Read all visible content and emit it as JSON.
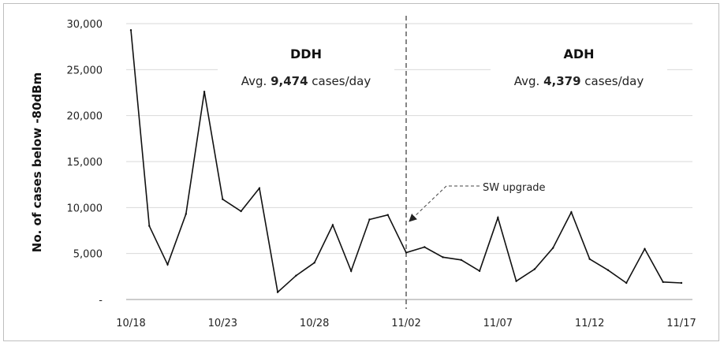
{
  "chart_data": {
    "type": "line",
    "title": "",
    "ylabel": "No. of cases below -80dBm",
    "xlabel": "",
    "ylim": [
      0,
      30000
    ],
    "yticks": [
      {
        "value": 0,
        "label": "-"
      },
      {
        "value": 5000,
        "label": "5,000"
      },
      {
        "value": 10000,
        "label": "10,000"
      },
      {
        "value": 15000,
        "label": "15,000"
      },
      {
        "value": 20000,
        "label": "20,000"
      },
      {
        "value": 25000,
        "label": "25,000"
      },
      {
        "value": 30000,
        "label": "30,000"
      }
    ],
    "xtick_labels": [
      {
        "date": "10/18",
        "label": "10/18"
      },
      {
        "date": "10/23",
        "label": "10/23"
      },
      {
        "date": "10/28",
        "label": "10/28"
      },
      {
        "date": "11/02",
        "label": "11/02"
      },
      {
        "date": "11/07",
        "label": "11/07"
      },
      {
        "date": "11/12",
        "label": "11/12"
      },
      {
        "date": "11/17",
        "label": "11/17"
      }
    ],
    "grid": true,
    "series": [
      {
        "dates": [
          "10/18",
          "10/19",
          "10/20",
          "10/21",
          "10/22",
          "10/23",
          "10/24",
          "10/25",
          "10/26",
          "10/27",
          "10/28",
          "10/29",
          "10/30",
          "10/31",
          "11/01",
          "11/02",
          "11/03",
          "11/04",
          "11/05",
          "11/06",
          "11/07",
          "11/08",
          "11/09",
          "11/10",
          "11/11",
          "11/12",
          "11/13",
          "11/14",
          "11/15",
          "11/16",
          "11/17"
        ],
        "values": [
          29300,
          8000,
          3800,
          9300,
          22600,
          10900,
          9600,
          12100,
          800,
          2600,
          4000,
          8100,
          3100,
          8700,
          9200,
          5100,
          5700,
          4600,
          4300,
          3100,
          8900,
          2000,
          3300,
          5600,
          9500,
          4400,
          3200,
          1800,
          5500,
          1900,
          1800
        ]
      }
    ],
    "divider": {
      "date": "11/02"
    },
    "regions": [
      {
        "title": "DDH",
        "avg_prefix": "Avg. ",
        "avg_value": "9,474",
        "avg_suffix": " cases/day"
      },
      {
        "title": "ADH",
        "avg_prefix": "Avg. ",
        "avg_value": "4,379",
        "avg_suffix": " cases/day"
      }
    ],
    "annotation": {
      "text": "SW upgrade",
      "date": "11/02",
      "value": 8500
    }
  }
}
